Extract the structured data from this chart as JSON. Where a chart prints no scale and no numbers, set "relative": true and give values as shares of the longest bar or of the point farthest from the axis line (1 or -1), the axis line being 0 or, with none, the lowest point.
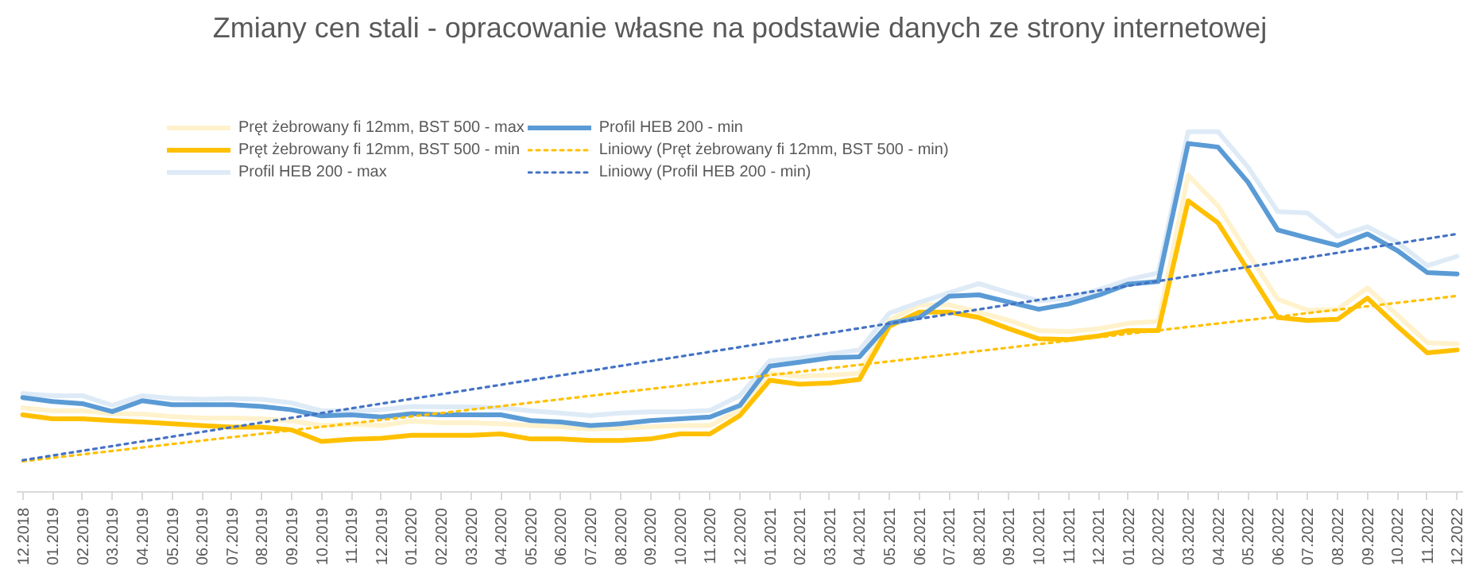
{
  "chart_data": {
    "type": "line",
    "title": "Zmiany cen stali - opracowanie własne na podstawie danych ze strony internetowej",
    "relative": true,
    "grid": false,
    "legend": "top",
    "line_style": "solid",
    "marker": "none",
    "categories": [
      "12.2018",
      "01.2019",
      "02.2019",
      "03.2019",
      "04.2019",
      "05.2019",
      "06.2019",
      "07.2019",
      "08.2019",
      "09.2019",
      "10.2019",
      "11.2019",
      "12.2019",
      "01.2020",
      "02.2020",
      "03.2020",
      "04.2020",
      "05.2020",
      "06.2020",
      "07.2020",
      "08.2020",
      "09.2020",
      "10.2020",
      "11.2020",
      "12.2020",
      "01.2021",
      "02.2021",
      "03.2021",
      "04.2021",
      "05.2021",
      "06.2021",
      "07.2021",
      "08.2021",
      "09.2021",
      "10.2021",
      "11.2021",
      "12.2021",
      "01.2022",
      "02.2022",
      "03.2022",
      "04.2022",
      "05.2022",
      "06.2022",
      "07.2022",
      "08.2022",
      "09.2022",
      "10.2022",
      "11.2022",
      "12.2022"
    ],
    "series": [
      {
        "name": "Pręt żebrowany fi 12mm, BST 500 - max",
        "color": "#fff2cc",
        "values": [
          0.234,
          0.225,
          0.225,
          0.217,
          0.216,
          0.209,
          0.205,
          0.205,
          0.203,
          0.197,
          0.184,
          0.188,
          0.184,
          0.197,
          0.192,
          0.192,
          0.189,
          0.184,
          0.181,
          0.174,
          0.177,
          0.181,
          0.184,
          0.184,
          0.228,
          0.329,
          0.321,
          0.324,
          0.329,
          0.476,
          0.519,
          0.519,
          0.499,
          0.476,
          0.448,
          0.445,
          0.453,
          0.468,
          0.473,
          0.879,
          0.794,
          0.662,
          0.535,
          0.504,
          0.507,
          0.566,
          0.491,
          0.414,
          0.411
        ]
      },
      {
        "name": "Pręt żebrowany fi 12mm, BST 500 - min",
        "color": "#ffc000",
        "values": [
          0.214,
          0.203,
          0.203,
          0.198,
          0.194,
          0.189,
          0.184,
          0.18,
          0.18,
          0.172,
          0.14,
          0.146,
          0.149,
          0.157,
          0.157,
          0.157,
          0.161,
          0.147,
          0.147,
          0.143,
          0.143,
          0.147,
          0.161,
          0.161,
          0.212,
          0.31,
          0.299,
          0.302,
          0.312,
          0.46,
          0.499,
          0.499,
          0.484,
          0.453,
          0.425,
          0.423,
          0.433,
          0.448,
          0.448,
          0.808,
          0.747,
          0.616,
          0.484,
          0.476,
          0.479,
          0.538,
          0.46,
          0.386,
          0.394
        ]
      },
      {
        "name": "Profil HEB 200 - max",
        "color": "#deebf7",
        "values": [
          0.273,
          0.267,
          0.267,
          0.24,
          0.267,
          0.26,
          0.257,
          0.259,
          0.257,
          0.247,
          0.225,
          0.225,
          0.228,
          0.237,
          0.236,
          0.236,
          0.234,
          0.225,
          0.219,
          0.212,
          0.219,
          0.222,
          0.222,
          0.226,
          0.267,
          0.364,
          0.371,
          0.383,
          0.394,
          0.496,
          0.526,
          0.553,
          0.578,
          0.553,
          0.53,
          0.538,
          0.561,
          0.589,
          0.608,
          1,
          1,
          0.902,
          0.778,
          0.774,
          0.709,
          0.736,
          0.693,
          0.628,
          0.654
        ]
      },
      {
        "name": "Profil HEB 200 - min",
        "color": "#5b9bd5",
        "values": [
          0.262,
          0.251,
          0.245,
          0.223,
          0.253,
          0.242,
          0.242,
          0.242,
          0.237,
          0.228,
          0.211,
          0.214,
          0.208,
          0.217,
          0.214,
          0.214,
          0.214,
          0.198,
          0.194,
          0.184,
          0.189,
          0.198,
          0.203,
          0.208,
          0.24,
          0.349,
          0.36,
          0.372,
          0.375,
          0.468,
          0.484,
          0.543,
          0.547,
          0.527,
          0.507,
          0.522,
          0.546,
          0.577,
          0.584,
          0.967,
          0.957,
          0.86,
          0.727,
          0.705,
          0.684,
          0.716,
          0.67,
          0.609,
          0.605
        ]
      },
      {
        "name": "Liniowy (Pręt żebrowany fi 12mm, BST 500 - min)",
        "color": "#ffc000",
        "line_style": "dotted",
        "x": [
          "12.2018",
          "12.2022"
        ],
        "values": [
          0.085,
          0.544
        ]
      },
      {
        "name": "Liniowy (Profil HEB 200 - min)",
        "color": "#4472c4",
        "line_style": "dotted",
        "x": [
          "12.2018",
          "12.2022"
        ],
        "values": [
          0.088,
          0.716
        ]
      }
    ]
  }
}
